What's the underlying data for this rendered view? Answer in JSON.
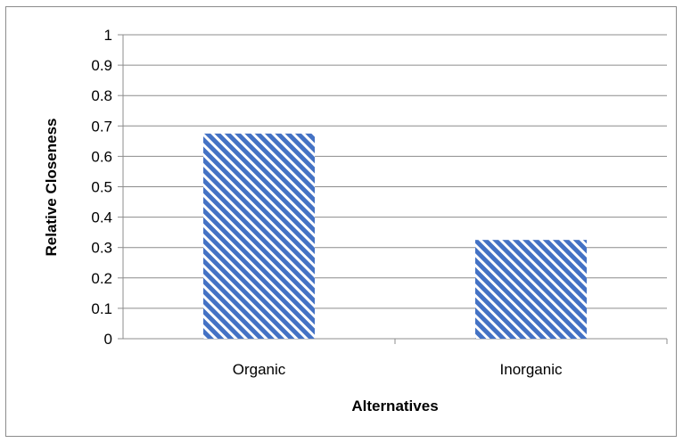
{
  "chart_data": {
    "type": "bar",
    "categories": [
      "Organic",
      "Inorganic"
    ],
    "values": [
      0.675,
      0.325
    ],
    "title": "",
    "xlabel": "Alternatives",
    "ylabel": "Relative Closeness",
    "ylim": [
      0,
      1
    ],
    "yticks": [
      "0",
      "0.1",
      "0.2",
      "0.3",
      "0.4",
      "0.5",
      "0.6",
      "0.7",
      "0.8",
      "0.9",
      "1"
    ],
    "grid": true,
    "legend": "none",
    "bar_color": "#4472c4",
    "bar_fill": "diagonal-pattern"
  }
}
